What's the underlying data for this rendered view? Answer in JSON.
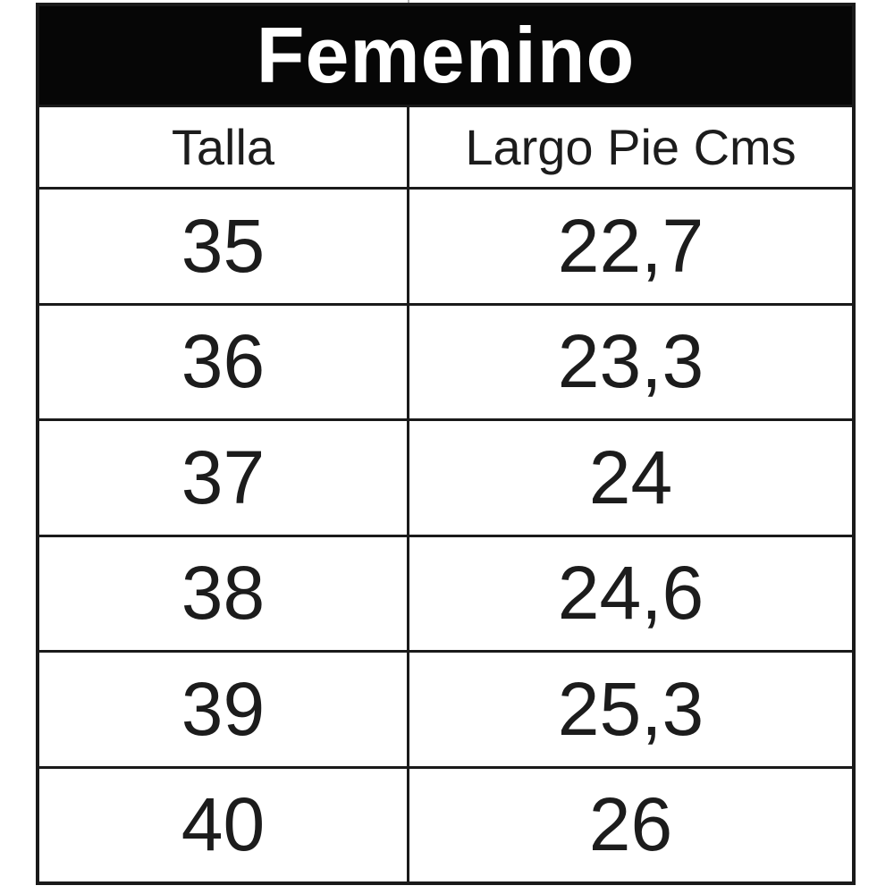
{
  "chart_data": {
    "type": "table",
    "title": "Femenino",
    "columns": [
      "Talla",
      "Largo Pie Cms"
    ],
    "rows": [
      [
        "35",
        "22,7"
      ],
      [
        "36",
        "23,3"
      ],
      [
        "37",
        "24"
      ],
      [
        "38",
        "24,6"
      ],
      [
        "39",
        "25,3"
      ],
      [
        "40",
        "26"
      ]
    ]
  },
  "colors": {
    "header_bg": "#060606",
    "header_text": "#ffffff",
    "grid_line": "#1a1a1a",
    "cell_bg": "#ffffff",
    "cell_text": "#1c1c1c"
  }
}
